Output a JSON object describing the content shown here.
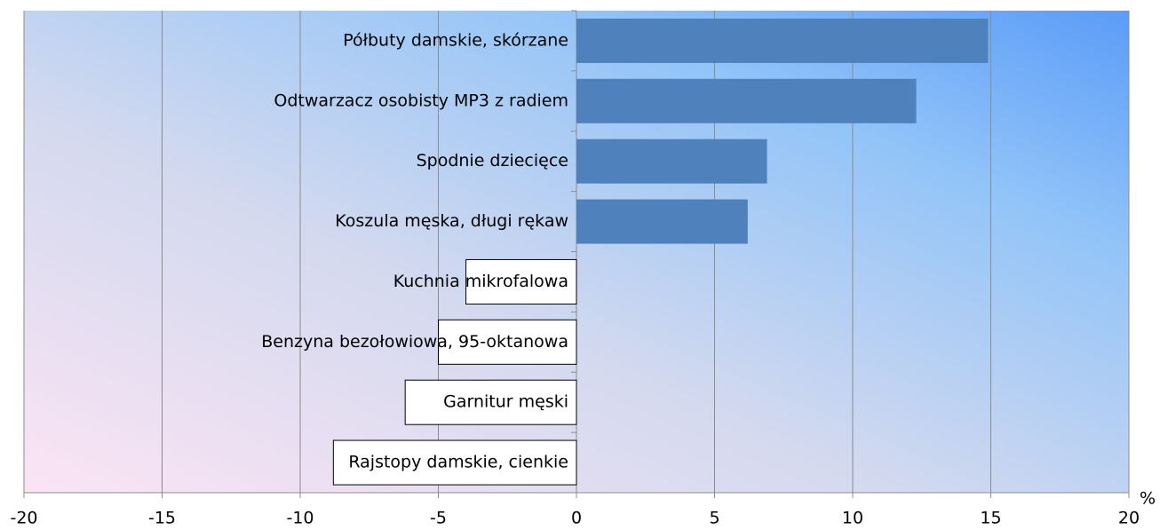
{
  "chart_data": {
    "type": "barh",
    "categories": [
      "Półbuty damskie, skórzane",
      "Odtwarzacz osobisty MP3 z radiem",
      "Spodnie dziecięce",
      "Koszula męska, długi rękaw",
      "Kuchnia mikrofalowa",
      "Benzyna bezołowiowa, 95-oktanowa",
      "Garnitur męski",
      "Rajstopy damskie, cienkie"
    ],
    "values": [
      14.9,
      12.3,
      6.9,
      6.2,
      -4.0,
      -5.0,
      -6.2,
      -8.8
    ],
    "colors": [
      "#4f81bd",
      "#4f81bd",
      "#4f81bd",
      "#4f81bd",
      "#ffffff",
      "#ffffff",
      "#ffffff",
      "#ffffff"
    ],
    "xlabel": "%",
    "xlim": [
      -20,
      20
    ],
    "xticks": [
      -20,
      -15,
      -10,
      -5,
      0,
      5,
      10,
      15,
      20
    ],
    "grid": true
  }
}
